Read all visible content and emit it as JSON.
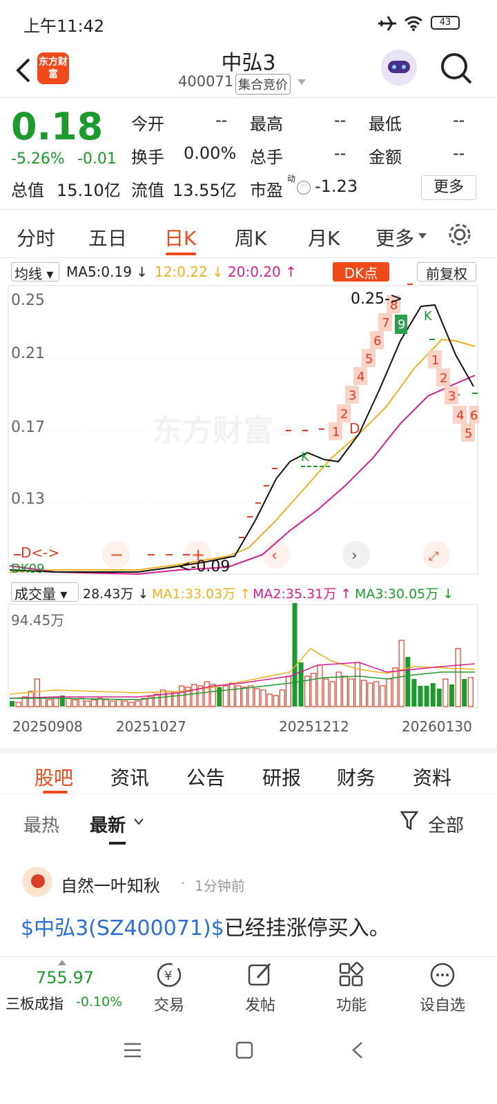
{
  "status_bar": {
    "time": "上午11:42",
    "battery": "43"
  },
  "header": {
    "logo_text": "东方财富",
    "name": "中弘3",
    "code": "400071",
    "status_tag": "集合竞价"
  },
  "quote": {
    "price": "0.18",
    "change_pct": "-5.26%",
    "change": "-0.01",
    "fields": [
      {
        "label": "今开",
        "value": "--"
      },
      {
        "label": "最高",
        "value": "--"
      },
      {
        "label": "最低",
        "value": "--"
      },
      {
        "label": "换手",
        "value": "0.00%"
      },
      {
        "label": "总手",
        "value": "--"
      },
      {
        "label": "金额",
        "value": "--"
      }
    ],
    "total_value_label": "总值",
    "total_value": "15.10亿",
    "float_value_label": "流值",
    "float_value": "13.55亿",
    "pe_label": "市盈",
    "pe_sup": "动",
    "pe_value": "-1.23",
    "more_button": "更多"
  },
  "period_tabs": [
    "分时",
    "五日",
    "日K",
    "周K",
    "月K",
    "更多"
  ],
  "active_period": "日K",
  "kline": {
    "ma_selector": "均线",
    "ma5": "MA5:0.19",
    "ma12": "12:0.22",
    "ma20": "20:0.20",
    "dk_button": "DK点",
    "adjust_button": "前复权",
    "y_ticks": [
      "0.25",
      "0.21",
      "0.17",
      "0.13"
    ],
    "high_note": "0.25->",
    "low_note": "<-0.09",
    "dk_labels": [
      "D<->",
      "DK09"
    ],
    "watermark": "东方财富",
    "seq_up": [
      "1",
      "2",
      "3",
      "4",
      "5",
      "6",
      "7",
      "8"
    ],
    "seq_green": "9",
    "seq_down": [
      "1",
      "2",
      "3",
      "4",
      "5",
      "6"
    ],
    "marker_d": "D",
    "marker_k": "K"
  },
  "volume": {
    "selector": "成交量",
    "value": "28.43万",
    "ma1": "MA1:33.03万",
    "ma2": "MA2:35.31万",
    "ma3": "MA3:30.05万",
    "max_label": "94.45万",
    "dates": [
      "20250908",
      "20251027",
      "20251212",
      "20260130"
    ]
  },
  "colors": {
    "up": "#e23a23",
    "down": "#1d9a2c",
    "ma5": "#222222",
    "ma12": "#f0b21c",
    "ma20": "#d61c8d",
    "accent": "#f04a1a"
  },
  "content_tabs": [
    "股吧",
    "资讯",
    "公告",
    "研报",
    "财务",
    "资料"
  ],
  "active_content_tab": "股吧",
  "feed": {
    "sort_tabs": [
      "最热",
      "最新"
    ],
    "active_sort": "最新",
    "filter": "全部",
    "post": {
      "user": "自然一叶知秋",
      "time": "1分钟前",
      "link": "$中弘3(SZ400071)$",
      "text": "已经挂涨停买入。"
    }
  },
  "toolbar": {
    "index_value": "755.97",
    "index_name": "三板成指",
    "index_change": "-0.10%",
    "items": [
      {
        "icon": "trade-icon",
        "label": "交易"
      },
      {
        "icon": "post-icon",
        "label": "发帖"
      },
      {
        "icon": "function-icon",
        "label": "功能"
      },
      {
        "icon": "watchlist-icon",
        "label": "设自选"
      }
    ]
  }
}
